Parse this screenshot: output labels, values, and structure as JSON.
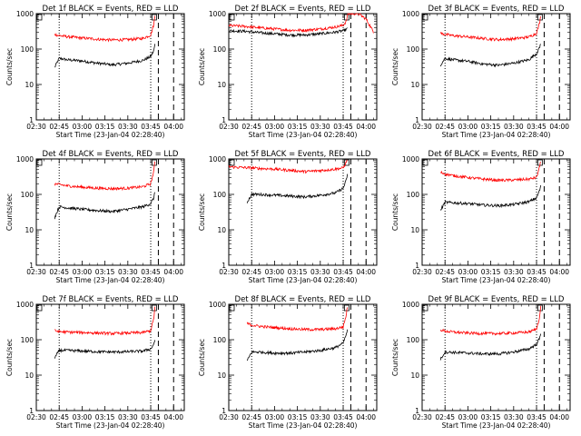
{
  "colors": {
    "events": "#000000",
    "lld": "#ff0000",
    "background": "#ffffff",
    "axes": "#000000"
  },
  "chart_data": [
    {
      "type": "line",
      "title": "Det 1f BLACK = Events, RED = LLD",
      "xlabel": "Start Time (23-Jan-04 02:28:40)",
      "ylabel": "Counts/sec",
      "yscale": "log",
      "ylim": [
        1,
        1000
      ],
      "xlim": [
        "02:30",
        "04:07"
      ],
      "xtick_labels": [
        "02:30",
        "02:45",
        "03:00",
        "03:15",
        "03:30",
        "03:45",
        "04:00"
      ],
      "ytick_labels": [
        "1",
        "10",
        "100",
        "1000"
      ],
      "x_start": "02:42",
      "x_end": "03:48",
      "dotted_lines": [
        "02:45",
        "03:45"
      ],
      "dashed_lines": [
        "03:50",
        "04:00"
      ],
      "series": [
        {
          "name": "Events",
          "color": "#000000",
          "x": [
            "02:42",
            "02:45",
            "02:50",
            "03:00",
            "03:10",
            "03:20",
            "03:30",
            "03:40",
            "03:45",
            "03:47",
            "03:48"
          ],
          "values": [
            30,
            55,
            50,
            46,
            40,
            36,
            40,
            48,
            62,
            90,
            150
          ]
        },
        {
          "name": "LLD",
          "color": "#ff0000",
          "x": [
            "02:42",
            "02:45",
            "02:50",
            "03:00",
            "03:10",
            "03:20",
            "03:30",
            "03:40",
            "03:45",
            "03:47",
            "03:48"
          ],
          "values": [
            260,
            240,
            225,
            205,
            190,
            180,
            185,
            200,
            250,
            500,
            1000
          ]
        }
      ]
    },
    {
      "type": "line",
      "title": "Det 2f BLACK = Events, RED = LLD",
      "xlabel": "Start Time (23-Jan-04 02:28:40)",
      "ylabel": "Counts/sec",
      "yscale": "log",
      "ylim": [
        1,
        1000
      ],
      "xlim": [
        "02:30",
        "04:07"
      ],
      "xtick_labels": [
        "02:30",
        "02:45",
        "03:00",
        "03:15",
        "03:30",
        "03:45",
        "04:00"
      ],
      "ytick_labels": [
        "1",
        "10",
        "100",
        "1000"
      ],
      "x_start": "02:30",
      "x_end": "04:05",
      "dotted_lines": [
        "02:45",
        "03:45"
      ],
      "dashed_lines": [
        "03:50",
        "04:00"
      ],
      "series": [
        {
          "name": "Events",
          "color": "#000000",
          "x": [
            "02:30",
            "02:40",
            "02:50",
            "03:00",
            "03:10",
            "03:20",
            "03:30",
            "03:40",
            "03:45",
            "03:47",
            "03:48"
          ],
          "values": [
            330,
            320,
            290,
            270,
            250,
            250,
            270,
            300,
            330,
            360,
            380
          ]
        },
        {
          "name": "LLD",
          "color": "#ff0000",
          "x": [
            "02:30",
            "02:40",
            "02:50",
            "03:00",
            "03:10",
            "03:20",
            "03:30",
            "03:40",
            "03:45",
            "03:47",
            "03:48",
            "03:55",
            "04:00",
            "04:05"
          ],
          "values": [
            460,
            440,
            400,
            370,
            340,
            340,
            370,
            420,
            470,
            600,
            1000,
            1000,
            700,
            300
          ]
        }
      ]
    },
    {
      "type": "line",
      "title": "Det 3f BLACK = Events, RED = LLD",
      "xlabel": "Start Time (23-Jan-04 02:28:40)",
      "ylabel": "Counts/sec",
      "yscale": "log",
      "ylim": [
        1,
        1000
      ],
      "xlim": [
        "02:30",
        "04:07"
      ],
      "xtick_labels": [
        "02:30",
        "02:45",
        "03:00",
        "03:15",
        "03:30",
        "03:45",
        "04:00"
      ],
      "ytick_labels": [
        "1",
        "10",
        "100",
        "1000"
      ],
      "x_start": "02:42",
      "x_end": "03:48",
      "dotted_lines": [
        "02:45",
        "03:45"
      ],
      "dashed_lines": [
        "03:50",
        "04:00"
      ],
      "series": [
        {
          "name": "Events",
          "color": "#000000",
          "x": [
            "02:42",
            "02:45",
            "02:50",
            "03:00",
            "03:10",
            "03:20",
            "03:30",
            "03:40",
            "03:45",
            "03:47",
            "03:48"
          ],
          "values": [
            35,
            55,
            50,
            45,
            38,
            35,
            40,
            50,
            75,
            110,
            160
          ]
        },
        {
          "name": "LLD",
          "color": "#ff0000",
          "x": [
            "02:42",
            "02:45",
            "02:50",
            "03:00",
            "03:10",
            "03:20",
            "03:30",
            "03:40",
            "03:45",
            "03:47",
            "03:48"
          ],
          "values": [
            280,
            260,
            240,
            220,
            200,
            185,
            195,
            220,
            280,
            550,
            1000
          ]
        }
      ]
    },
    {
      "type": "line",
      "title": "Det 4f BLACK = Events, RED = LLD",
      "xlabel": "Start Time (23-Jan-04 02:28:40)",
      "ylabel": "Counts/sec",
      "yscale": "log",
      "ylim": [
        1,
        1000
      ],
      "xlim": [
        "02:30",
        "04:07"
      ],
      "xtick_labels": [
        "02:30",
        "02:45",
        "03:00",
        "03:15",
        "03:30",
        "03:45",
        "04:00"
      ],
      "ytick_labels": [
        "1",
        "10",
        "100",
        "1000"
      ],
      "x_start": "02:42",
      "x_end": "03:48",
      "dotted_lines": [
        "02:45",
        "03:45"
      ],
      "dashed_lines": [
        "03:50",
        "04:00"
      ],
      "series": [
        {
          "name": "Events",
          "color": "#000000",
          "x": [
            "02:42",
            "02:45",
            "02:50",
            "03:00",
            "03:10",
            "03:20",
            "03:30",
            "03:40",
            "03:45",
            "03:47",
            "03:48"
          ],
          "values": [
            22,
            45,
            42,
            38,
            35,
            33,
            38,
            45,
            55,
            80,
            130
          ]
        },
        {
          "name": "LLD",
          "color": "#ff0000",
          "x": [
            "02:42",
            "02:45",
            "02:50",
            "03:00",
            "03:10",
            "03:20",
            "03:30",
            "03:40",
            "03:45",
            "03:47",
            "03:48"
          ],
          "values": [
            200,
            190,
            175,
            160,
            150,
            145,
            150,
            165,
            200,
            450,
            1000
          ]
        }
      ]
    },
    {
      "type": "line",
      "title": "Det 5f BLACK = Events, RED = LLD",
      "xlabel": "Start Time (23-Jan-04 02:28:40)",
      "ylabel": "Counts/sec",
      "yscale": "log",
      "ylim": [
        1,
        1000
      ],
      "xlim": [
        "02:30",
        "04:07"
      ],
      "xtick_labels": [
        "02:30",
        "02:45",
        "03:00",
        "03:15",
        "03:30",
        "03:45",
        "04:00"
      ],
      "ytick_labels": [
        "1",
        "10",
        "100",
        "1000"
      ],
      "x_start": "02:30",
      "x_end": "03:48",
      "dotted_lines": [
        "02:45",
        "03:45"
      ],
      "dashed_lines": [
        "03:50",
        "04:00"
      ],
      "series": [
        {
          "name": "Events",
          "color": "#000000",
          "x": [
            "02:42",
            "02:45",
            "02:50",
            "03:00",
            "03:10",
            "03:20",
            "03:30",
            "03:40",
            "03:45",
            "03:47",
            "03:48"
          ],
          "values": [
            60,
            100,
            100,
            95,
            90,
            85,
            95,
            110,
            150,
            250,
            400
          ]
        },
        {
          "name": "LLD",
          "color": "#ff0000",
          "x": [
            "02:30",
            "02:45",
            "02:50",
            "03:00",
            "03:10",
            "03:20",
            "03:30",
            "03:40",
            "03:45",
            "03:47",
            "03:48"
          ],
          "values": [
            600,
            560,
            540,
            520,
            480,
            440,
            470,
            520,
            560,
            800,
            1000
          ]
        }
      ]
    },
    {
      "type": "line",
      "title": "Det 6f BLACK = Events, RED = LLD",
      "xlabel": "Start Time (23-Jan-04 02:28:40)",
      "ylabel": "Counts/sec",
      "yscale": "log",
      "ylim": [
        1,
        1000
      ],
      "xlim": [
        "02:30",
        "04:07"
      ],
      "xtick_labels": [
        "02:30",
        "02:45",
        "03:00",
        "03:15",
        "03:30",
        "03:45",
        "04:00"
      ],
      "ytick_labels": [
        "1",
        "10",
        "100",
        "1000"
      ],
      "x_start": "02:42",
      "x_end": "03:48",
      "dotted_lines": [
        "02:45",
        "03:45"
      ],
      "dashed_lines": [
        "03:50",
        "04:00"
      ],
      "series": [
        {
          "name": "Events",
          "color": "#000000",
          "x": [
            "02:42",
            "02:45",
            "02:50",
            "03:00",
            "03:10",
            "03:20",
            "03:30",
            "03:40",
            "03:45",
            "03:47",
            "03:48"
          ],
          "values": [
            35,
            60,
            58,
            55,
            50,
            48,
            52,
            62,
            80,
            130,
            180
          ]
        },
        {
          "name": "LLD",
          "color": "#ff0000",
          "x": [
            "02:42",
            "02:45",
            "02:50",
            "03:00",
            "03:10",
            "03:20",
            "03:30",
            "03:40",
            "03:45",
            "03:47",
            "03:48"
          ],
          "values": [
            420,
            380,
            340,
            300,
            270,
            250,
            255,
            270,
            300,
            600,
            1000
          ]
        }
      ]
    },
    {
      "type": "line",
      "title": "Det 7f BLACK = Events, RED = LLD",
      "xlabel": "Start Time (23-Jan-04 02:28:40)",
      "ylabel": "Counts/sec",
      "yscale": "log",
      "ylim": [
        1,
        1000
      ],
      "xlim": [
        "02:30",
        "04:07"
      ],
      "xtick_labels": [
        "02:30",
        "02:45",
        "03:00",
        "03:15",
        "03:30",
        "03:45",
        "04:00"
      ],
      "ytick_labels": [
        "1",
        "10",
        "100",
        "1000"
      ],
      "x_start": "02:42",
      "x_end": "03:48",
      "dotted_lines": [
        "02:45",
        "03:45"
      ],
      "dashed_lines": [
        "03:50",
        "04:00"
      ],
      "series": [
        {
          "name": "Events",
          "color": "#000000",
          "x": [
            "02:42",
            "02:45",
            "02:50",
            "03:00",
            "03:10",
            "03:20",
            "03:30",
            "03:40",
            "03:45",
            "03:47",
            "03:48"
          ],
          "values": [
            30,
            50,
            50,
            48,
            46,
            45,
            46,
            48,
            55,
            75,
            110
          ]
        },
        {
          "name": "LLD",
          "color": "#ff0000",
          "x": [
            "02:42",
            "02:45",
            "02:50",
            "03:00",
            "03:10",
            "03:20",
            "03:30",
            "03:40",
            "03:45",
            "03:47",
            "03:48"
          ],
          "values": [
            180,
            170,
            165,
            160,
            155,
            150,
            155,
            160,
            180,
            400,
            1000
          ]
        }
      ]
    },
    {
      "type": "line",
      "title": "Det 8f BLACK = Events, RED = LLD",
      "xlabel": "Start Time (23-Jan-04 02:28:40)",
      "ylabel": "Counts/sec",
      "yscale": "log",
      "ylim": [
        1,
        1000
      ],
      "xlim": [
        "02:30",
        "04:07"
      ],
      "xtick_labels": [
        "02:30",
        "02:45",
        "03:00",
        "03:15",
        "03:30",
        "03:45",
        "04:00"
      ],
      "ytick_labels": [
        "1",
        "10",
        "100",
        "1000"
      ],
      "x_start": "02:42",
      "x_end": "03:48",
      "dotted_lines": [
        "02:45",
        "03:45"
      ],
      "dashed_lines": [
        "03:50",
        "04:00"
      ],
      "series": [
        {
          "name": "Events",
          "color": "#000000",
          "x": [
            "02:42",
            "02:45",
            "02:50",
            "03:00",
            "03:10",
            "03:20",
            "03:30",
            "03:40",
            "03:45",
            "03:47",
            "03:48"
          ],
          "values": [
            25,
            45,
            45,
            42,
            42,
            45,
            50,
            60,
            80,
            140,
            200
          ]
        },
        {
          "name": "LLD",
          "color": "#ff0000",
          "x": [
            "02:42",
            "02:45",
            "02:50",
            "03:00",
            "03:10",
            "03:20",
            "03:30",
            "03:40",
            "03:45",
            "03:47",
            "03:48"
          ],
          "values": [
            290,
            260,
            240,
            220,
            205,
            195,
            195,
            205,
            230,
            500,
            1000
          ]
        }
      ]
    },
    {
      "type": "line",
      "title": "Det 9f BLACK = Events, RED = LLD",
      "xlabel": "Start Time (23-Jan-04 02:28:40)",
      "ylabel": "Counts/sec",
      "yscale": "log",
      "ylim": [
        1,
        1000
      ],
      "xlim": [
        "02:30",
        "04:07"
      ],
      "xtick_labels": [
        "02:30",
        "02:45",
        "03:00",
        "03:15",
        "03:30",
        "03:45",
        "04:00"
      ],
      "ytick_labels": [
        "1",
        "10",
        "100",
        "1000"
      ],
      "x_start": "02:42",
      "x_end": "03:48",
      "dotted_lines": [
        "02:45",
        "03:45"
      ],
      "dashed_lines": [
        "03:50",
        "04:00"
      ],
      "series": [
        {
          "name": "Events",
          "color": "#000000",
          "x": [
            "02:42",
            "02:45",
            "02:50",
            "03:00",
            "03:10",
            "03:20",
            "03:30",
            "03:40",
            "03:45",
            "03:47",
            "03:48"
          ],
          "values": [
            28,
            45,
            44,
            42,
            40,
            40,
            45,
            55,
            75,
            110,
            150
          ]
        },
        {
          "name": "LLD",
          "color": "#ff0000",
          "x": [
            "02:42",
            "02:45",
            "02:50",
            "03:00",
            "03:10",
            "03:20",
            "03:30",
            "03:40",
            "03:45",
            "03:47",
            "03:48"
          ],
          "values": [
            190,
            175,
            165,
            155,
            150,
            150,
            155,
            165,
            200,
            450,
            1000
          ]
        }
      ]
    }
  ]
}
